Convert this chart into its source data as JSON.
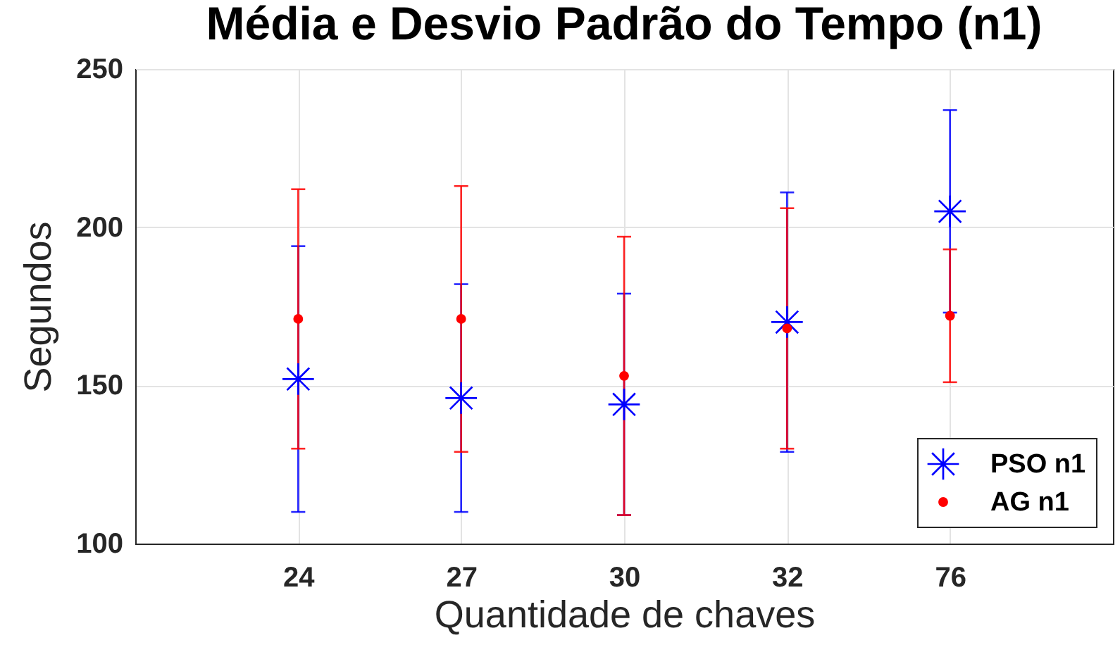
{
  "chart_data": {
    "type": "scatter",
    "title": "Média e Desvio Padrão do Tempo (n1)",
    "xlabel": "Quantidade de chaves",
    "ylabel": "Segundos",
    "categories": [
      "24",
      "27",
      "30",
      "32",
      "76"
    ],
    "ylim": [
      100,
      250
    ],
    "yticks": [
      100,
      150,
      200,
      250
    ],
    "grid": true,
    "legend": "bottom right",
    "series": [
      {
        "name": "PSO n1",
        "color": "#0000ff",
        "marker": "cross",
        "values": [
          152,
          146,
          144,
          170,
          205
        ],
        "errors": [
          42,
          36,
          35,
          41,
          32
        ]
      },
      {
        "name": "AG n1",
        "color": "#ff0000",
        "marker": "circle",
        "values": [
          171,
          171,
          153,
          168,
          172
        ],
        "errors": [
          41,
          42,
          44,
          38,
          21
        ]
      }
    ]
  }
}
